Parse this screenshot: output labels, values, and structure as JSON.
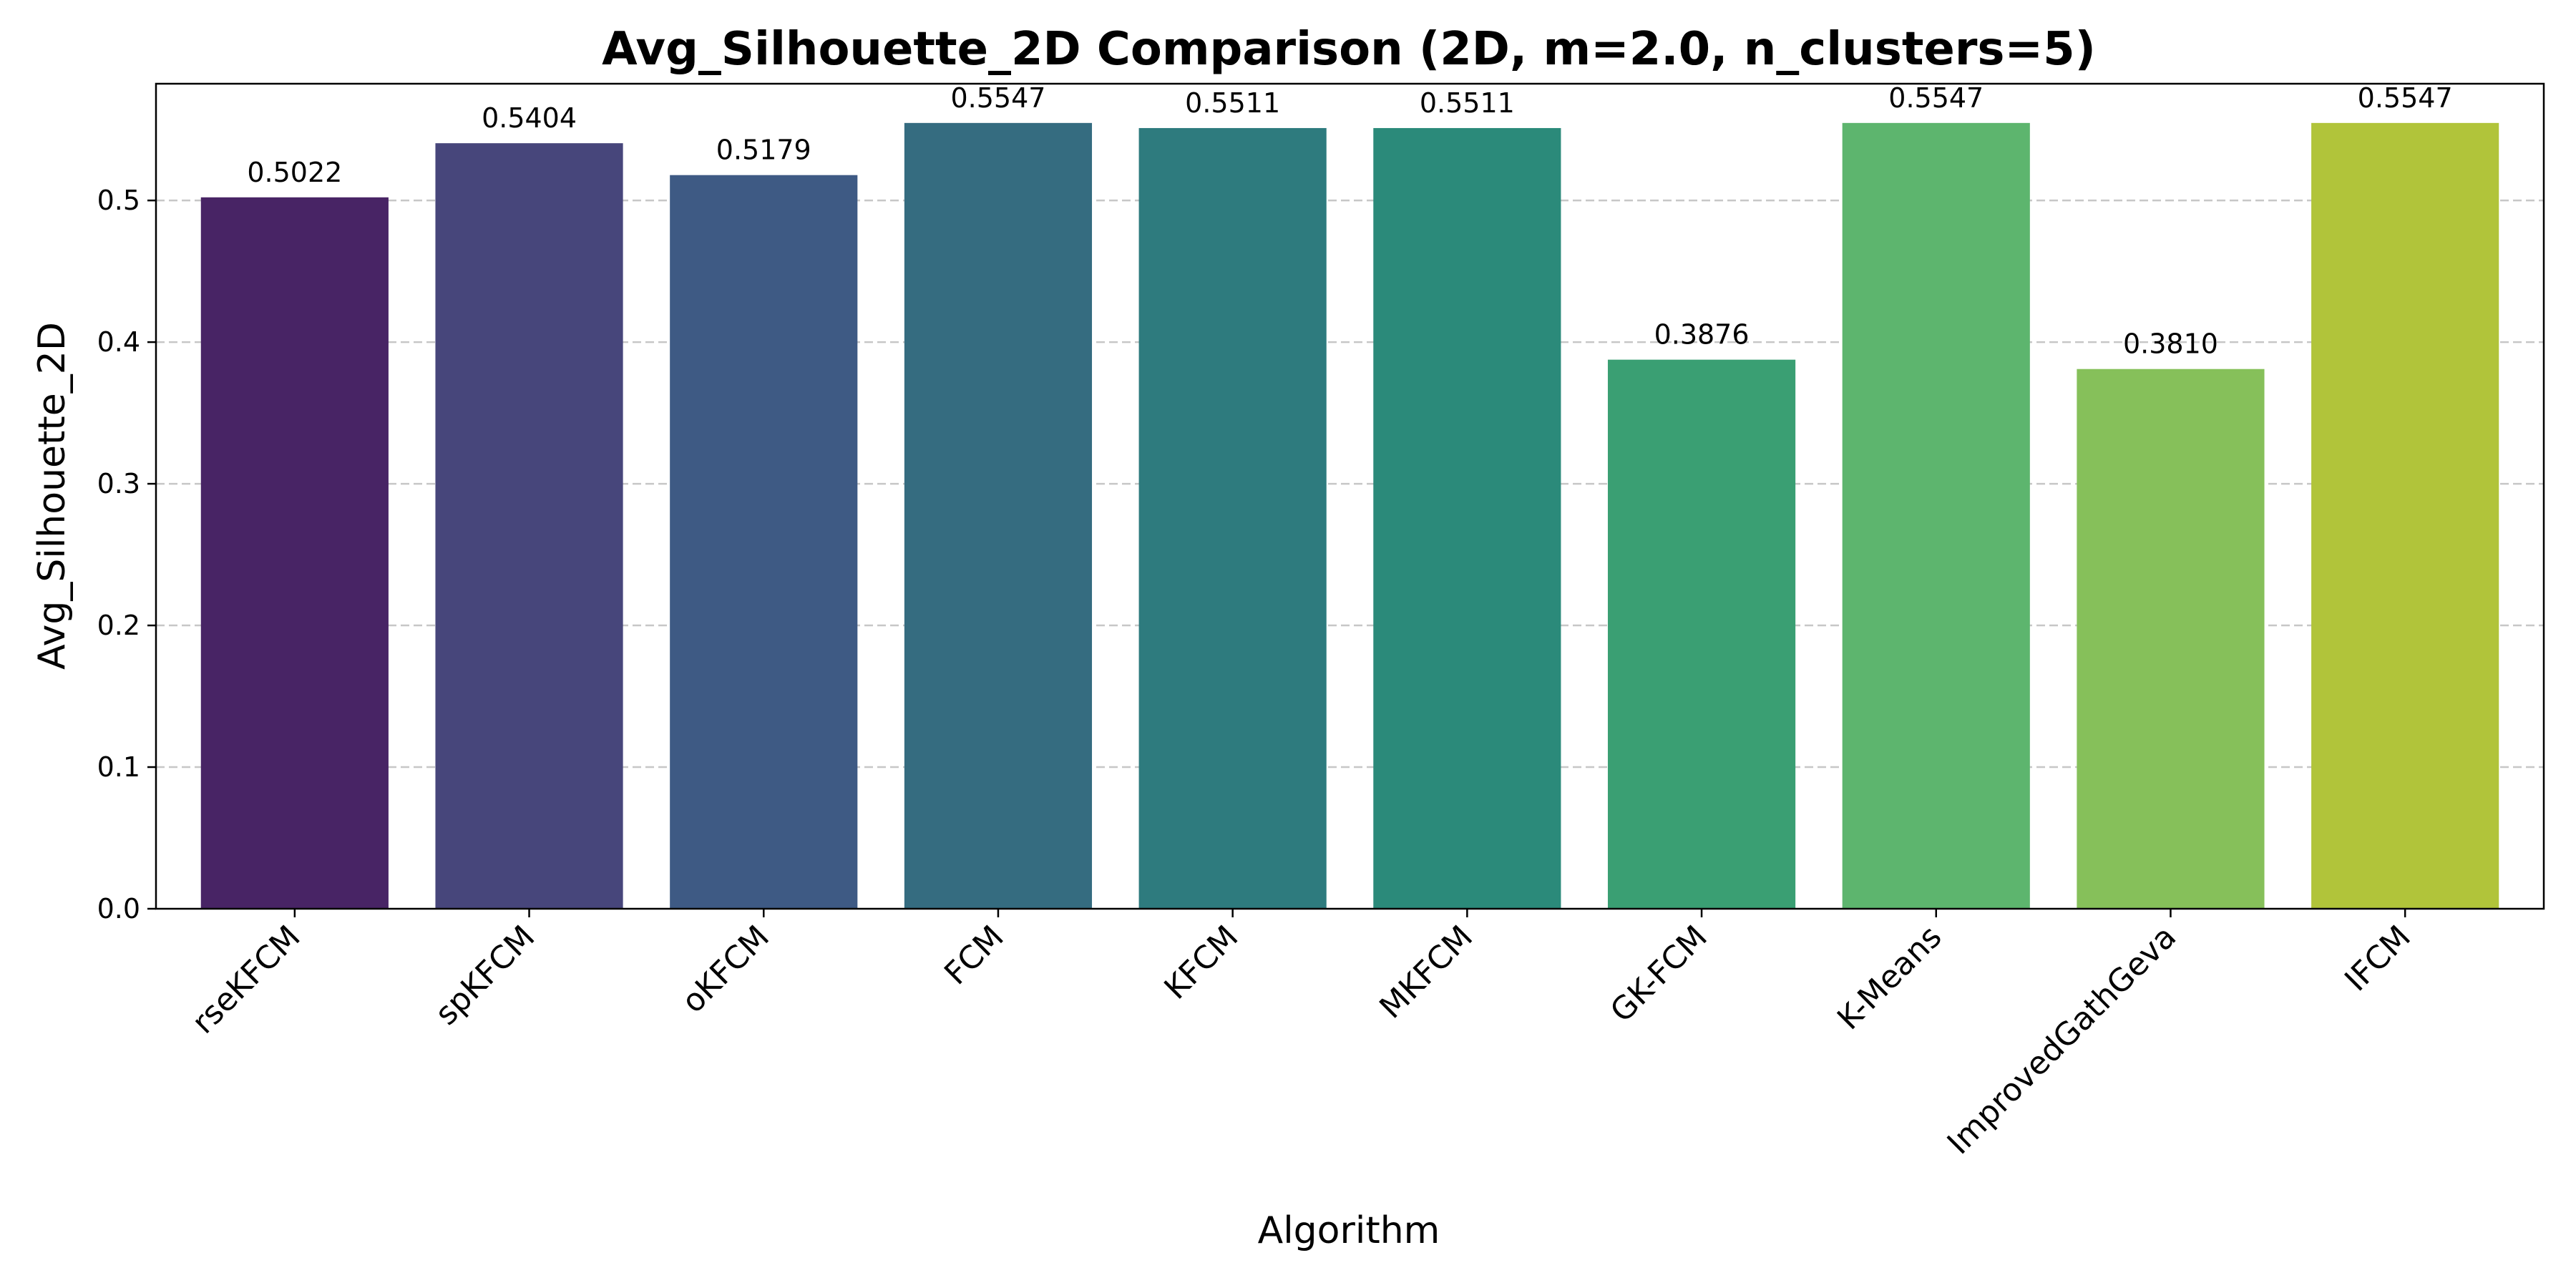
{
  "chart_data": {
    "type": "bar",
    "title": "Avg_Silhouette_2D Comparison (2D, m=2.0, n_clusters=5)",
    "xlabel": "Algorithm",
    "ylabel": "Avg_Silhouette_2D",
    "categories": [
      "rseKFCM",
      "spKFCM",
      "oKFCM",
      "FCM",
      "KFCM",
      "MKFCM",
      "GK-FCM",
      "K-Means",
      "ImprovedGathGeva",
      "IFCM"
    ],
    "values": [
      0.5022,
      0.5404,
      0.5179,
      0.5547,
      0.5511,
      0.5511,
      0.3876,
      0.5547,
      0.381,
      0.5547
    ],
    "value_labels": [
      "0.5022",
      "0.5404",
      "0.5179",
      "0.5547",
      "0.5511",
      "0.5511",
      "0.3876",
      "0.5547",
      "0.3810",
      "0.5547"
    ],
    "yticks": [
      0.0,
      0.1,
      0.2,
      0.3,
      0.4,
      0.5
    ],
    "ytick_labels": [
      "0.0",
      "0.1",
      "0.2",
      "0.3",
      "0.4",
      "0.5"
    ],
    "ylim": [
      0.0,
      0.5824
    ],
    "grid": "horizontal dashed",
    "colors": [
      "#482465",
      "#47467b",
      "#3e5a84",
      "#356c80",
      "#2e7b7e",
      "#2b8a7a",
      "#3a9f73",
      "#5db56e",
      "#86c05a",
      "#b1c43a"
    ]
  }
}
